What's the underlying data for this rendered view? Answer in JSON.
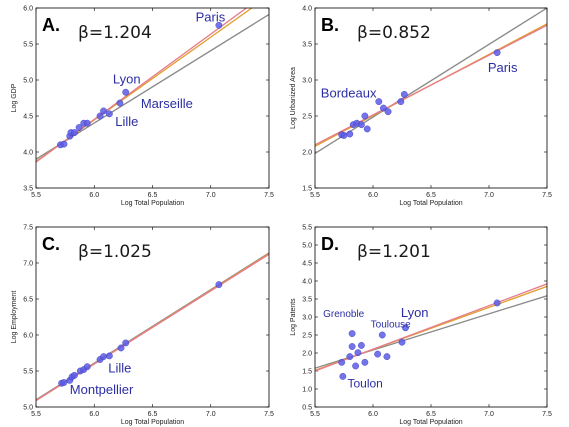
{
  "colors": {
    "point": "#5a5ae6",
    "line_gray": "#8a8a8a",
    "line_orange": "#e0a030",
    "line_pink": "#e87a8a",
    "city_label": "#2b2ea3"
  },
  "chart_data": [
    {
      "type": "scatter",
      "panel": "A.",
      "beta": "β=1.204",
      "xlabel": "Log Total Population",
      "ylabel": "Log GDP",
      "xlim": [
        5.5,
        7.5
      ],
      "ylim": [
        3.5,
        6.0
      ],
      "xticks": [
        5.5,
        6.0,
        6.5,
        7.0,
        7.5
      ],
      "yticks": [
        3.5,
        4.0,
        4.5,
        5.0,
        5.5,
        6.0
      ],
      "tick_decimals": 1,
      "points": [
        {
          "x": 5.71,
          "y": 4.1
        },
        {
          "x": 5.74,
          "y": 4.11
        },
        {
          "x": 5.79,
          "y": 4.22
        },
        {
          "x": 5.8,
          "y": 4.27
        },
        {
          "x": 5.83,
          "y": 4.27
        },
        {
          "x": 5.87,
          "y": 4.34
        },
        {
          "x": 5.91,
          "y": 4.4
        },
        {
          "x": 5.94,
          "y": 4.4
        },
        {
          "x": 6.05,
          "y": 4.5
        },
        {
          "x": 6.08,
          "y": 4.57
        },
        {
          "x": 6.13,
          "y": 4.53
        },
        {
          "x": 6.22,
          "y": 4.68
        },
        {
          "x": 6.27,
          "y": 4.83
        },
        {
          "x": 7.07,
          "y": 5.76
        }
      ],
      "lines": [
        {
          "color": "gray",
          "x": [
            5.5,
            7.5
          ],
          "y": [
            3.9,
            5.91
          ]
        },
        {
          "color": "orange",
          "x": [
            5.5,
            7.5
          ],
          "y": [
            3.87,
            6.17
          ]
        },
        {
          "color": "pink",
          "x": [
            5.5,
            7.5
          ],
          "y": [
            3.86,
            6.23
          ]
        }
      ],
      "cities": [
        {
          "name": "Paris",
          "x": 6.87,
          "y": 5.81,
          "size": 13
        },
        {
          "name": "Lyon",
          "x": 6.16,
          "y": 4.95,
          "size": 13
        },
        {
          "name": "Marseille",
          "x": 6.4,
          "y": 4.61,
          "size": 13
        },
        {
          "name": "Lille",
          "x": 6.18,
          "y": 4.36,
          "size": 13
        }
      ]
    },
    {
      "type": "scatter",
      "panel": "B.",
      "beta": "β=0.852",
      "xlabel": "Log Total Population",
      "ylabel": "Log Urbanized Area",
      "xlim": [
        5.5,
        7.5
      ],
      "ylim": [
        1.5,
        4.0
      ],
      "xticks": [
        5.5,
        6.0,
        6.5,
        7.0,
        7.5
      ],
      "yticks": [
        1.5,
        2.0,
        2.5,
        3.0,
        3.5,
        4.0
      ],
      "tick_decimals": 1,
      "points": [
        {
          "x": 5.73,
          "y": 2.24
        },
        {
          "x": 5.75,
          "y": 2.23
        },
        {
          "x": 5.8,
          "y": 2.25
        },
        {
          "x": 5.83,
          "y": 2.38
        },
        {
          "x": 5.86,
          "y": 2.4
        },
        {
          "x": 5.9,
          "y": 2.38
        },
        {
          "x": 5.93,
          "y": 2.5
        },
        {
          "x": 5.95,
          "y": 2.32
        },
        {
          "x": 6.05,
          "y": 2.7
        },
        {
          "x": 6.09,
          "y": 2.61
        },
        {
          "x": 6.13,
          "y": 2.56
        },
        {
          "x": 6.24,
          "y": 2.7
        },
        {
          "x": 6.27,
          "y": 2.8
        },
        {
          "x": 7.07,
          "y": 3.38
        }
      ],
      "lines": [
        {
          "color": "gray",
          "x": [
            5.5,
            7.5
          ],
          "y": [
            1.98,
            4.0
          ]
        },
        {
          "color": "orange",
          "x": [
            5.5,
            7.5
          ],
          "y": [
            2.08,
            3.78
          ]
        },
        {
          "color": "pink",
          "x": [
            5.5,
            7.5
          ],
          "y": [
            2.1,
            3.76
          ]
        }
      ],
      "cities": [
        {
          "name": "Bordeaux",
          "x": 5.55,
          "y": 2.76,
          "size": 13
        },
        {
          "name": "Paris",
          "x": 6.99,
          "y": 3.11,
          "size": 13
        }
      ]
    },
    {
      "type": "scatter",
      "panel": "C.",
      "beta": "β=1.025",
      "xlabel": "Log Total Population",
      "ylabel": "Log Employment",
      "xlim": [
        5.5,
        7.5
      ],
      "ylim": [
        5.0,
        7.5
      ],
      "xticks": [
        5.5,
        6.0,
        6.5,
        7.0,
        7.5
      ],
      "yticks": [
        5.0,
        5.5,
        6.0,
        6.5,
        7.0,
        7.5
      ],
      "tick_decimals": 1,
      "points": [
        {
          "x": 5.72,
          "y": 5.33
        },
        {
          "x": 5.74,
          "y": 5.34
        },
        {
          "x": 5.79,
          "y": 5.37
        },
        {
          "x": 5.81,
          "y": 5.42
        },
        {
          "x": 5.83,
          "y": 5.44
        },
        {
          "x": 5.88,
          "y": 5.5
        },
        {
          "x": 5.91,
          "y": 5.52
        },
        {
          "x": 5.94,
          "y": 5.56
        },
        {
          "x": 6.05,
          "y": 5.66
        },
        {
          "x": 6.08,
          "y": 5.7
        },
        {
          "x": 6.13,
          "y": 5.71
        },
        {
          "x": 6.23,
          "y": 5.82
        },
        {
          "x": 6.27,
          "y": 5.89
        },
        {
          "x": 7.07,
          "y": 6.7
        }
      ],
      "lines": [
        {
          "color": "gray",
          "x": [
            5.5,
            7.5
          ],
          "y": [
            5.1,
            7.14
          ]
        },
        {
          "color": "orange",
          "x": [
            5.5,
            7.5
          ],
          "y": [
            5.09,
            7.13
          ]
        },
        {
          "color": "pink",
          "x": [
            5.5,
            7.5
          ],
          "y": [
            5.09,
            7.12
          ]
        }
      ],
      "cities": [
        {
          "name": "Lille",
          "x": 6.12,
          "y": 5.48,
          "size": 13
        },
        {
          "name": "Montpellier",
          "x": 5.79,
          "y": 5.18,
          "size": 13
        }
      ]
    },
    {
      "type": "scatter",
      "panel": "D.",
      "beta": "β=1.201",
      "xlabel": "Log Total Population",
      "ylabel": "Log Patents",
      "xlim": [
        5.5,
        7.5
      ],
      "ylim": [
        0.5,
        5.5
      ],
      "xticks": [
        5.5,
        6.0,
        6.5,
        7.0,
        7.5
      ],
      "yticks": [
        0.5,
        1.0,
        1.5,
        2.0,
        2.5,
        3.0,
        3.5,
        4.0,
        4.5,
        5.0,
        5.5
      ],
      "tick_decimals": 1,
      "points": [
        {
          "x": 5.74,
          "y": 1.35
        },
        {
          "x": 5.73,
          "y": 1.74
        },
        {
          "x": 5.8,
          "y": 1.9
        },
        {
          "x": 5.82,
          "y": 2.18
        },
        {
          "x": 5.82,
          "y": 2.54
        },
        {
          "x": 5.85,
          "y": 1.64
        },
        {
          "x": 5.87,
          "y": 2.01
        },
        {
          "x": 5.9,
          "y": 2.21
        },
        {
          "x": 5.93,
          "y": 1.74
        },
        {
          "x": 6.04,
          "y": 1.97
        },
        {
          "x": 6.08,
          "y": 2.5
        },
        {
          "x": 6.12,
          "y": 1.9
        },
        {
          "x": 6.25,
          "y": 2.3
        },
        {
          "x": 6.28,
          "y": 2.7
        },
        {
          "x": 7.07,
          "y": 3.39
        }
      ],
      "lines": [
        {
          "color": "gray",
          "x": [
            5.5,
            7.5
          ],
          "y": [
            1.58,
            3.59
          ]
        },
        {
          "color": "orange",
          "x": [
            5.5,
            7.5
          ],
          "y": [
            1.52,
            3.85
          ]
        },
        {
          "color": "pink",
          "x": [
            5.5,
            7.5
          ],
          "y": [
            1.5,
            3.92
          ]
        }
      ],
      "cities": [
        {
          "name": "Grenoble",
          "x": 5.57,
          "y": 3.0,
          "size": 10
        },
        {
          "name": "Lyon",
          "x": 6.24,
          "y": 3.0,
          "size": 13
        },
        {
          "name": "Toulouse",
          "x": 5.98,
          "y": 2.71,
          "size": 10
        },
        {
          "name": "Toulon",
          "x": 5.78,
          "y": 1.04,
          "size": 12
        }
      ]
    }
  ]
}
